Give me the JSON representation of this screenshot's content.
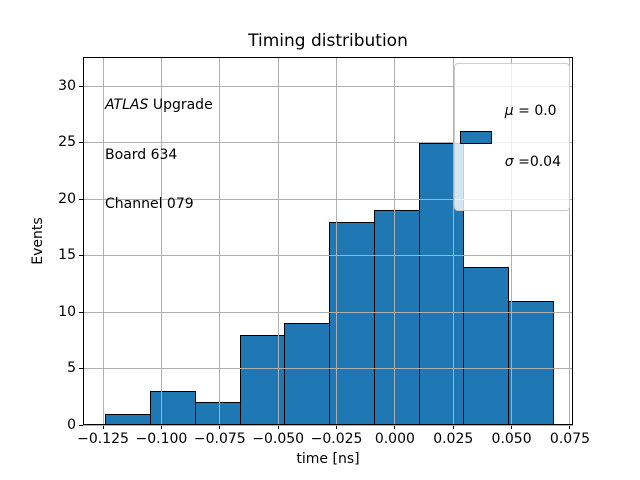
{
  "chart_data": {
    "type": "bar",
    "subtype": "histogram",
    "title": "Timing distribution",
    "xlabel": "time [ns]",
    "ylabel": "Events",
    "bin_edges": [
      -0.1241,
      -0.1049,
      -0.0857,
      -0.0665,
      -0.0474,
      -0.0282,
      -0.009,
      0.0102,
      0.0293,
      0.0485,
      0.0677
    ],
    "counts": [
      1,
      3,
      2,
      8,
      9,
      18,
      19,
      25,
      14,
      11
    ],
    "xlim": [
      -0.1336,
      0.0763
    ],
    "ylim": [
      0,
      32.57
    ],
    "xticks": {
      "values": [
        -0.125,
        -0.1,
        -0.075,
        -0.05,
        -0.025,
        0.0,
        0.025,
        0.05,
        0.075
      ],
      "labels": [
        "−0.125",
        "−0.100",
        "−0.075",
        "−0.050",
        "−0.025",
        "0.000",
        "0.025",
        "0.050",
        "0.075"
      ]
    },
    "yticks": {
      "values": [
        0,
        5,
        10,
        15,
        20,
        25,
        30
      ],
      "labels": [
        "0",
        "5",
        "10",
        "15",
        "20",
        "25",
        "30"
      ]
    },
    "grid": true,
    "legend_position": "upper right",
    "colors": {
      "bar_fill": "#1f77b4",
      "bar_edge": "#000000",
      "grid": "#b0b0b0",
      "axes": "#000000",
      "legend_border": "#cccccc"
    },
    "legend": {
      "entries": [
        {
          "swatch_color": "#1f77b4",
          "lines": [
            {
              "sym": "μ",
              "rest": " = 0.0"
            },
            {
              "sym": "σ",
              "rest": " =0.04"
            }
          ]
        }
      ]
    },
    "annotation": {
      "line1_italic": "ATLAS",
      "line1_rest": " Upgrade",
      "line2": "Board 634",
      "line3": "Channel 079"
    }
  }
}
